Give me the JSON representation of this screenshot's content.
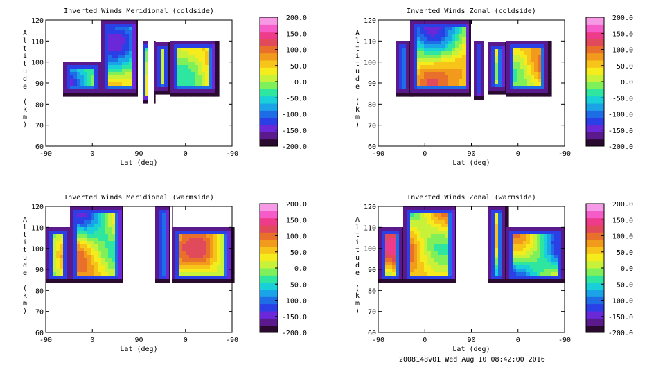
{
  "chart_data": [
    {
      "type": "heatmap",
      "title": "Inverted Winds Meridional (coldside)",
      "xlabel": "Lat (deg)",
      "ylabel": "Altitude (km)",
      "x_tick_labels": [
        "-90",
        "0",
        "90",
        "0",
        "-90"
      ],
      "y_ticks": [
        60,
        70,
        80,
        90,
        100,
        110,
        120
      ],
      "ylim": [
        60,
        120
      ],
      "colorbar": {
        "range": [
          -200,
          200
        ],
        "tick_labels": [
          "200.0",
          "150.0",
          "100.0",
          "50.0",
          "0.0",
          "-50.0",
          "-100.0",
          "-150.0",
          "-200.0"
        ]
      }
    },
    {
      "type": "heatmap",
      "title": "Inverted Winds Zonal (coldside)",
      "xlabel": "Lat (deg)",
      "ylabel": "Altitude (km)",
      "x_tick_labels": [
        "-90",
        "0",
        "90",
        "0",
        "-90"
      ],
      "y_ticks": [
        60,
        70,
        80,
        90,
        100,
        110,
        120
      ],
      "ylim": [
        60,
        120
      ],
      "colorbar": {
        "range": [
          -200,
          200
        ],
        "tick_labels": [
          "200.0",
          "150.0",
          "100.0",
          "50.0",
          "0.0",
          "-50.0",
          "-100.0",
          "-150.0",
          "-200.0"
        ]
      }
    },
    {
      "type": "heatmap",
      "title": "Inverted Winds Meridional (warmside)",
      "xlabel": "Lat (deg)",
      "ylabel": "Altitude (km)",
      "x_tick_labels": [
        "-90",
        "0",
        "90",
        "0",
        "-90"
      ],
      "y_ticks": [
        60,
        70,
        80,
        90,
        100,
        110,
        120
      ],
      "ylim": [
        60,
        120
      ],
      "colorbar": {
        "range": [
          -200,
          200
        ],
        "tick_labels": [
          "200.0",
          "150.0",
          "100.0",
          "50.0",
          "0.0",
          "-50.0",
          "-100.0",
          "-150.0",
          "-200.0"
        ]
      }
    },
    {
      "type": "heatmap",
      "title": "Inverted Winds Zonal (warmside)",
      "xlabel": "Lat (deg)",
      "ylabel": "Altitude (km)",
      "x_tick_labels": [
        "-90",
        "0",
        "90",
        "0",
        "-90"
      ],
      "y_ticks": [
        60,
        70,
        80,
        90,
        100,
        110,
        120
      ],
      "ylim": [
        60,
        120
      ],
      "colorbar": {
        "range": [
          -200,
          200
        ],
        "tick_labels": [
          "200.0",
          "150.0",
          "100.0",
          "50.0",
          "0.0",
          "-50.0",
          "-100.0",
          "-150.0",
          "-200.0"
        ]
      }
    }
  ],
  "colormap": [
    "#2a0a2e",
    "#5a1a8c",
    "#6a28d8",
    "#2b3fe6",
    "#1f6de6",
    "#1ba3e8",
    "#19d0d8",
    "#2ee6a0",
    "#7ff05a",
    "#c8f23a",
    "#f5ec1e",
    "#f7c51a",
    "#f29a1c",
    "#e8702a",
    "#e04a5a",
    "#ee3b8a",
    "#f55cc8",
    "#f79ae6"
  ],
  "footer": "2008148v01 Wed Aug 10 08:42:00 2016"
}
